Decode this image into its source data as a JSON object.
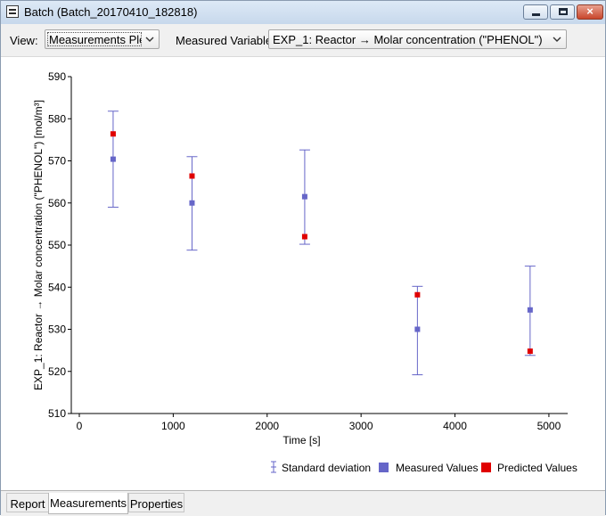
{
  "window": {
    "app_name": "Batch",
    "title": "Batch  (Batch_20170410_182818)",
    "icon": "batch-app-icon",
    "controls": {
      "minimize_icon": "minimize-icon",
      "maximize_icon": "maximize-icon",
      "close_label": "×"
    }
  },
  "toolbar": {
    "view_label": "View:",
    "view_value": "Measurements Plot",
    "variable_label": "Measured Variable:",
    "variable_value": "EXP_1: Reactor → Molar concentration (\"PHENOL\")"
  },
  "chart_data": {
    "type": "scatter",
    "title": "",
    "xlabel": "Time [s]",
    "ylabel": "EXP_1: Reactor → Molar concentration (\"PHENOL\") [mol/m³]",
    "xlim": [
      0,
      5200
    ],
    "ylim": [
      510,
      590
    ],
    "xticks": [
      0,
      1000,
      2000,
      3000,
      4000,
      5000
    ],
    "yticks": [
      510,
      520,
      530,
      540,
      550,
      560,
      570,
      580,
      590
    ],
    "grid": false,
    "legend_position": "bottom-right",
    "series": [
      {
        "name": "Measured Values",
        "color": "#6666c8",
        "x": [
          360,
          1200,
          2400,
          3600,
          4800
        ],
        "y": [
          570.4,
          560.0,
          561.5,
          530.0,
          534.6
        ],
        "error_low": [
          559.0,
          548.8,
          550.2,
          519.2,
          523.8
        ],
        "error_high": [
          581.8,
          571.0,
          572.6,
          540.2,
          545.0
        ]
      },
      {
        "name": "Predicted Values",
        "color": "#e00000",
        "x": [
          360,
          1200,
          2400,
          3600,
          4800
        ],
        "y": [
          576.4,
          566.4,
          552.0,
          538.2,
          524.8
        ]
      }
    ],
    "legend": [
      {
        "label": "Standard deviation",
        "kind": "errorbar",
        "color": "#6666c8"
      },
      {
        "label": "Measured Values",
        "kind": "square",
        "color": "#6666c8"
      },
      {
        "label": "Predicted Values",
        "kind": "square",
        "color": "#e00000"
      }
    ]
  },
  "tabs": [
    {
      "label": "Report",
      "active": false
    },
    {
      "label": "Measurements",
      "active": true
    },
    {
      "label": "Properties",
      "active": false
    }
  ]
}
